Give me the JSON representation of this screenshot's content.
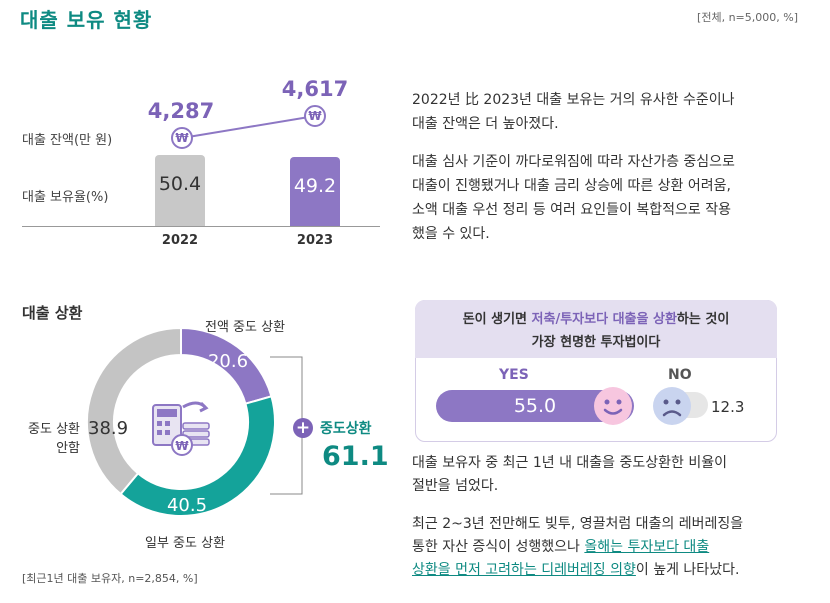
{
  "header": {
    "title": "대출 보유 현황",
    "meta": "[전체, n=5,000, %]"
  },
  "loan_chart": {
    "balance_label": "대출 잔액(만 원)",
    "rate_label": "대출 보유율(%)"
  },
  "text_top": {
    "line1": "2022년 比 2023년 대출 보유는 거의 유사한 수준이나",
    "line2": "대출 잔액은 더 높아졌다.",
    "line3": "대출 심사 기준이 까다로워짐에 따라 자산가층 중심으로",
    "line4": "대출이 진행됐거나 대출 금리 상승에 따른 상환 어려움,",
    "line5": "소액 대출 우선 정리 등 여러 요인들이 복합적으로 작용",
    "line6": "했을 수 있다."
  },
  "repay": {
    "title": "대출 상환",
    "plus": "+",
    "mid_label": "중도상환",
    "mid_value": "61.1",
    "note": "[최근1년 대출 보유자, n=2,854, %]",
    "coin_symbol": "₩"
  },
  "question": {
    "line1_a": "돈이 생기면 ",
    "line1_b": "저축/투자보다 대출을 상환",
    "line1_c": "하는 것이",
    "line2": "가장 현명한 투자법이다",
    "yes_label": "YES",
    "no_label": "NO",
    "yes_value": "55.0",
    "no_value": "12.3"
  },
  "text_bottom": {
    "line1": "대출 보유자 중 최근 1년 내 대출을 중도상환한 비율이",
    "line2": "절반을 넘었다.",
    "line3": "최근 2~3년 전만해도 빚투, 영끌처럼 대출의 레버레징을",
    "line4a": "통한 자산 증식이 성행했으나 ",
    "line4b": "올해는 투자보다 대출",
    "line5a": "상환을 먼저 고려하는 디레버레징 의향",
    "line5b": "이 높게 나타났다."
  },
  "colors": {
    "teal": "#0e8a82",
    "purple": "#7c63b7",
    "light_purple": "#8d77c4",
    "gray": "#c4c4c4"
  },
  "chart_data": [
    {
      "type": "bar",
      "categories": [
        "2022",
        "2023"
      ],
      "series": [
        {
          "name": "대출 잔액(만 원)",
          "values": [
            4287,
            4617
          ],
          "labels": [
            "4,287",
            "4,617"
          ]
        },
        {
          "name": "대출 보유율(%)",
          "values": [
            50.4,
            49.2
          ],
          "labels": [
            "50.4",
            "49.2"
          ]
        }
      ]
    },
    {
      "type": "pie",
      "categories": [
        "전액 중도 상환",
        "일부 중도 상환",
        "중도 상환 안함"
      ],
      "values": [
        20.6,
        40.5,
        38.9
      ],
      "labels": [
        "20.6",
        "40.5",
        "38.9"
      ],
      "colors": [
        "#8d77c4",
        "#14a39a",
        "#c4c4c4"
      ],
      "slice_labels": [
        "전액 중도 상환",
        "일부 중도 상환",
        "중도 상환\n안함"
      ]
    },
    {
      "type": "bar",
      "categories": [
        "YES",
        "NO"
      ],
      "values": [
        55.0,
        12.3
      ]
    }
  ]
}
